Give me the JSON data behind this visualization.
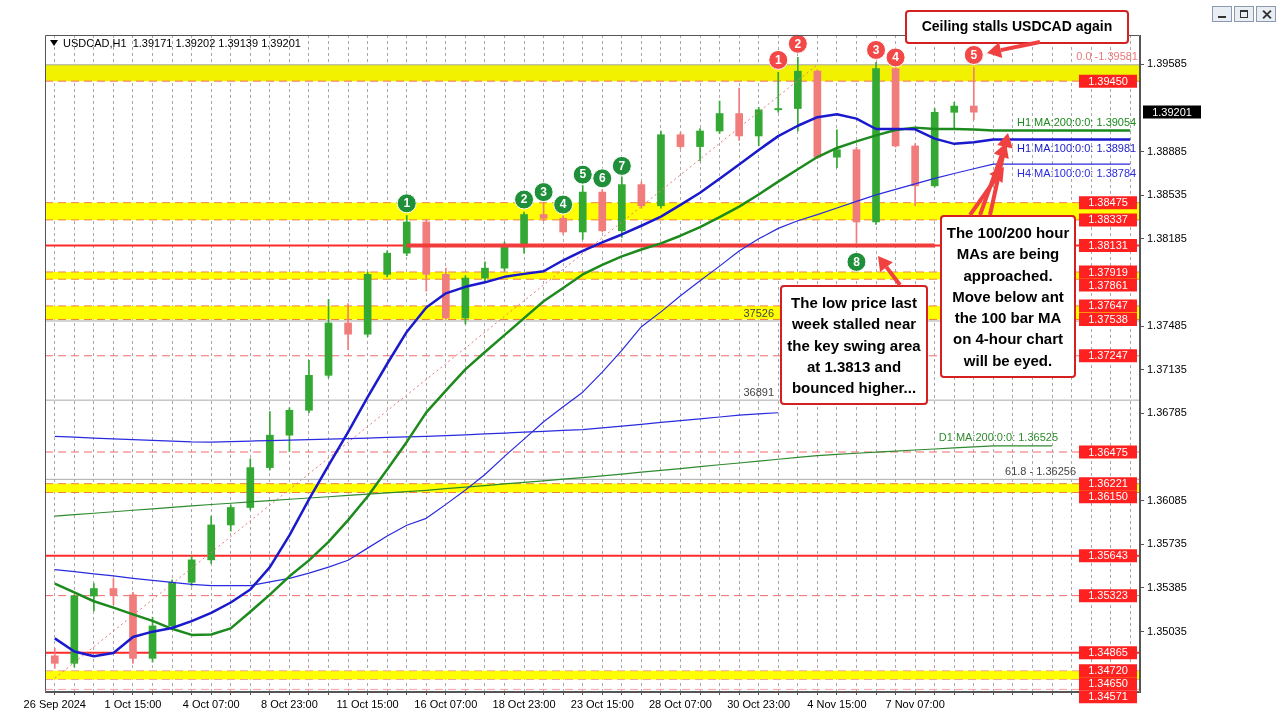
{
  "chart_data": {
    "type": "candlestick",
    "title": "USDCAD,H1  1.39171 1.39202 1.39139 1.39201",
    "categories": [
      "26 Sep 2024",
      null,
      null,
      null,
      "1 Oct 15:00",
      null,
      null,
      null,
      "4 Oct 07:00",
      null,
      null,
      null,
      "8 Oct 23:00",
      null,
      null,
      null,
      "11 Oct 15:00",
      null,
      null,
      null,
      "16 Oct 07:00",
      null,
      null,
      null,
      "18 Oct 23:00",
      null,
      null,
      null,
      "23 Oct 15:00",
      null,
      null,
      null,
      "28 Oct 07:00",
      null,
      null,
      null,
      "30 Oct 23:00",
      null,
      null,
      null,
      "4 Nov 15:00",
      null,
      null,
      null,
      "7 Nov 07:00",
      null,
      null,
      null,
      null,
      null,
      null,
      null,
      null,
      null,
      null,
      null
    ],
    "ohlc": [
      [
        1.3484,
        1.349,
        1.3474,
        1.3478
      ],
      [
        1.3478,
        1.3533,
        1.3475,
        1.3532
      ],
      [
        1.3532,
        1.3542,
        1.352,
        1.3538
      ],
      [
        1.3538,
        1.3546,
        1.3525,
        1.3533
      ],
      [
        1.3533,
        1.3535,
        1.3478,
        1.3482
      ],
      [
        1.3482,
        1.3515,
        1.3479,
        1.3508
      ],
      [
        1.3508,
        1.3545,
        1.3505,
        1.3543
      ],
      [
        1.3543,
        1.3564,
        1.354,
        1.3561
      ],
      [
        1.3561,
        1.3596,
        1.3558,
        1.3589
      ],
      [
        1.3589,
        1.3605,
        1.3584,
        1.3603
      ],
      [
        1.3603,
        1.3642,
        1.3601,
        1.3635
      ],
      [
        1.3635,
        1.368,
        1.3633,
        1.3661
      ],
      [
        1.3661,
        1.3683,
        1.3648,
        1.3681
      ],
      [
        1.3681,
        1.3721,
        1.3679,
        1.3709
      ],
      [
        1.3709,
        1.377,
        1.3707,
        1.3751
      ],
      [
        1.3751,
        1.37665,
        1.37295,
        1.3742
      ],
      [
        1.3742,
        1.3792,
        1.374,
        1.379
      ],
      [
        1.379,
        1.3809,
        1.3788,
        1.3807
      ],
      [
        1.3807,
        1.38372,
        1.3805,
        1.3832
      ],
      [
        1.3832,
        1.3834,
        1.37765,
        1.379
      ],
      [
        1.379,
        1.3795,
        1.3754,
        1.3755
      ],
      [
        1.3755,
        1.3789,
        1.37502,
        1.3787
      ],
      [
        1.3787,
        1.38,
        1.3784,
        1.3795
      ],
      [
        1.3795,
        1.3816,
        1.3793,
        1.3812
      ],
      [
        1.3812,
        1.384,
        1.3807,
        1.3838
      ],
      [
        1.3838,
        1.38476,
        1.3833,
        1.3835
      ],
      [
        1.3835,
        1.3837,
        1.3822,
        1.3824
      ],
      [
        1.3824,
        1.38611,
        1.3818,
        1.3856
      ],
      [
        1.3856,
        1.3858,
        1.3824,
        1.3825
      ],
      [
        1.3825,
        1.38683,
        1.38196,
        1.3862
      ],
      [
        1.3862,
        1.3864,
        1.3843,
        1.3845
      ],
      [
        1.3845,
        1.3905,
        1.3843,
        1.3902
      ],
      [
        1.3902,
        1.3904,
        1.3891,
        1.38925
      ],
      [
        1.38925,
        1.3907,
        1.3881,
        1.3905
      ],
      [
        1.3905,
        1.3929,
        1.3903,
        1.3919
      ],
      [
        1.3919,
        1.39395,
        1.38975,
        1.3901
      ],
      [
        1.3901,
        1.3924,
        1.38931,
        1.3922
      ],
      [
        1.3922,
        1.39521,
        1.392,
        1.3923
      ],
      [
        1.3923,
        1.39641,
        1.3905,
        1.3953
      ],
      [
        1.3953,
        1.3954,
        1.3883,
        1.3884
      ],
      [
        1.3884,
        1.3906,
        1.38755,
        1.389
      ],
      [
        1.389,
        1.3892,
        1.3815,
        1.3832
      ],
      [
        1.3832,
        1.39601,
        1.383,
        1.3955
      ],
      [
        1.3955,
        1.3956,
        1.3892,
        1.3893
      ],
      [
        1.3893,
        1.3895,
        1.38452,
        1.3861
      ],
      [
        1.3861,
        1.3923,
        1.386,
        1.392
      ],
      [
        1.392,
        1.3928,
        1.39075,
        1.3925
      ],
      [
        1.3925,
        1.3956,
        1.39139,
        1.39201
      ],
      null,
      null,
      null,
      null,
      null,
      null,
      null,
      null
    ],
    "colors": [
      "#f07c7c",
      "#33a833",
      "#33a833",
      "#f07c7c",
      "#f07c7c",
      "#33a833",
      "#33a833",
      "#33a833",
      "#33a833",
      "#33a833",
      "#33a833",
      "#33a833",
      "#33a833",
      "#33a833",
      "#33a833",
      "#f07c7c",
      "#33a833",
      "#33a833",
      "#33a833",
      "#f07c7c",
      "#f07c7c",
      "#33a833",
      "#33a833",
      "#33a833",
      "#33a833",
      "#f07c7c",
      "#f07c7c",
      "#33a833",
      "#f07c7c",
      "#33a833",
      "#f07c7c",
      "#33a833",
      "#f07c7c",
      "#33a833",
      "#33a833",
      "#f07c7c",
      "#33a833",
      "#33a833",
      "#33a833",
      "#f07c7c",
      "#33a833",
      "#f07c7c",
      "#33a833",
      "#f07c7c",
      "#f07c7c",
      "#33a833",
      "#33a833",
      "#f07c7c",
      null,
      null,
      null,
      null,
      null,
      null,
      null,
      null
    ],
    "series": [
      {
        "type": "line",
        "color": "#1a1acc",
        "values": [
          1.3498,
          1.34875,
          1.34837,
          1.34863,
          1.34991,
          1.35034,
          1.35063,
          1.35118,
          1.35185,
          1.35268,
          1.35372,
          1.35552,
          1.35807,
          1.36095,
          1.36368,
          1.36635,
          1.36915,
          1.37183,
          1.37438,
          1.37634,
          1.37748,
          1.378,
          1.37836,
          1.3788,
          1.37904,
          1.37925,
          1.38013,
          1.38088,
          1.38157,
          1.3822,
          1.3829,
          1.38363,
          1.38457,
          1.38555,
          1.38667,
          1.38782,
          1.38898,
          1.39009,
          1.39092,
          1.39161,
          1.39184,
          1.39149,
          1.39066,
          1.39067,
          1.39063,
          1.38989,
          1.38947,
          1.38959,
          1.38981,
          1.38981,
          1.38981,
          1.38981,
          1.38981,
          1.38981,
          1.38981,
          1.38981
        ]
      },
      {
        "type": "line",
        "color": "#1d8a1d",
        "values": [
          1.3542,
          1.35349,
          1.35278,
          1.35227,
          1.35173,
          1.3512,
          1.35057,
          1.35008,
          1.35011,
          1.3506,
          1.35194,
          1.35331,
          1.35478,
          1.35606,
          1.35754,
          1.35929,
          1.36118,
          1.36334,
          1.36556,
          1.36793,
          1.36967,
          1.37138,
          1.37277,
          1.37413,
          1.37549,
          1.37684,
          1.3779,
          1.37899,
          1.37976,
          1.38044,
          1.38099,
          1.38149,
          1.3821,
          1.38279,
          1.38359,
          1.38443,
          1.38541,
          1.38644,
          1.38743,
          1.38841,
          1.38914,
          1.38967,
          1.39015,
          1.39058,
          1.39077,
          1.39066,
          1.39066,
          1.39062,
          1.39054,
          1.39054,
          1.39054,
          1.39054,
          1.39054,
          1.39054,
          1.39054,
          1.39054
        ]
      },
      {
        "type": "line",
        "color": "#2a2ae0",
        "values": [
          1.35532,
          1.35515,
          1.35498,
          1.35481,
          1.35462,
          1.35445,
          1.3543,
          1.35414,
          1.35403,
          1.35403,
          1.35403,
          1.35433,
          1.35462,
          1.35503,
          1.35552,
          1.35607,
          1.35704,
          1.35801,
          1.35888,
          1.35943,
          1.36055,
          1.36171,
          1.36295,
          1.3644,
          1.36578,
          1.36718,
          1.36838,
          1.36955,
          1.37116,
          1.37291,
          1.3748,
          1.37599,
          1.37728,
          1.37848,
          1.37966,
          1.38088,
          1.38185,
          1.38269,
          1.3833,
          1.38379,
          1.38432,
          1.38485,
          1.38538,
          1.38582,
          1.38626,
          1.3867,
          1.38709,
          1.38747,
          1.38784,
          1.38784,
          1.38784,
          1.38784,
          1.38784,
          1.38784,
          1.38784,
          1.38784
        ]
      },
      {
        "type": "line",
        "color": "#2a2ae0",
        "values": [
          1.366,
          1.36594,
          1.36587,
          1.36581,
          1.36575,
          1.36569,
          1.36563,
          1.36557,
          1.36555,
          1.36558,
          1.36563,
          1.36567,
          1.36571,
          1.36575,
          1.36579,
          1.36583,
          1.36587,
          1.36592,
          1.36596,
          1.366,
          1.36607,
          1.36613,
          1.3662,
          1.36627,
          1.36634,
          1.36641,
          1.36648,
          1.36655,
          1.36668,
          1.36683,
          1.36697,
          1.36712,
          1.36727,
          1.36741,
          1.36756,
          1.36771,
          1.36781,
          1.3679,
          null,
          null,
          null,
          null,
          null,
          null,
          null,
          null,
          null,
          null,
          null,
          null,
          null,
          null,
          null,
          null,
          null,
          null
        ]
      },
      {
        "type": "line",
        "color": "#2e8b2e",
        "values": [
          1.35961,
          1.35973,
          1.35984,
          1.35996,
          1.36008,
          1.36019,
          1.36031,
          1.36043,
          1.36054,
          1.36064,
          1.36075,
          1.36085,
          1.36096,
          1.36106,
          1.36116,
          1.36127,
          1.36137,
          1.36148,
          1.36158,
          1.36168,
          1.36181,
          1.36194,
          1.36206,
          1.36219,
          1.36232,
          1.36244,
          1.36257,
          1.3627,
          1.36283,
          1.36298,
          1.36313,
          1.36327,
          1.36342,
          1.36358,
          1.36373,
          1.36387,
          1.36402,
          1.36417,
          1.36432,
          1.36446,
          1.36456,
          1.36465,
          1.36474,
          1.36482,
          1.36491,
          1.36499,
          1.36508,
          1.36517,
          1.36525,
          1.36525,
          1.36525,
          1.36525,
          null,
          null,
          null,
          null
        ]
      },
      {
        "type": "line",
        "color": "#e87878",
        "line_style": "dotted",
        "values": [
          1.34661,
          1.34787,
          1.34913,
          1.35039,
          1.35166,
          1.35292,
          1.35418,
          1.35544,
          1.3567,
          1.35796,
          1.35923,
          1.36049,
          1.36175,
          1.36301,
          1.36427,
          1.36553,
          1.3668,
          1.36806,
          1.36932,
          1.37058,
          1.37184,
          1.3731,
          1.37437,
          1.37563,
          1.37689,
          1.37815,
          1.37941,
          1.38067,
          1.38194,
          1.3832,
          1.38446,
          1.38572,
          1.38698,
          1.38824,
          1.38951,
          1.39077,
          1.39203,
          1.39329,
          1.39455,
          1.39581,
          null,
          null,
          null,
          null,
          null,
          null,
          null,
          null,
          null,
          null,
          null,
          null,
          null,
          null,
          null,
          null
        ]
      },
      {
        "type": "line",
        "color": "#f23c3c",
        "values": [
          null,
          null,
          null,
          null,
          null,
          null,
          null,
          null,
          null,
          null,
          null,
          null,
          null,
          null,
          null,
          null,
          null,
          null,
          1.38131,
          1.38131,
          1.38131,
          1.38131,
          1.38131,
          1.38131,
          1.38131,
          1.38131,
          1.38131,
          1.38131,
          1.38131,
          1.38131,
          1.38131,
          1.38131,
          1.38131,
          1.38131,
          1.38131,
          1.38131,
          1.38131,
          1.38131,
          1.38131,
          1.38131,
          1.38131,
          1.38131,
          1.38131,
          1.38131,
          1.38131,
          1.38131,
          null,
          null,
          null,
          null,
          null,
          null,
          null,
          null,
          null,
          null
        ]
      },
      {
        "type": "scatter",
        "color": "#1f8f3a",
        "marker": "circle",
        "values": [
          null,
          null,
          null,
          null,
          null,
          null,
          null,
          null,
          null,
          null,
          null,
          null,
          null,
          null,
          null,
          null,
          null,
          null,
          1.3847,
          null,
          null,
          null,
          null,
          null,
          1.385,
          1.3856,
          1.3846,
          1.387,
          1.3867,
          1.3877,
          null,
          null,
          null,
          null,
          null,
          null,
          null,
          null,
          null,
          null,
          null,
          1.38,
          null,
          null,
          null,
          null,
          null,
          null,
          null,
          null,
          null,
          null,
          null,
          null,
          null,
          null
        ]
      },
      {
        "type": "scatter",
        "color": "#f24848",
        "marker": "circle",
        "values": [
          null,
          null,
          null,
          null,
          null,
          null,
          null,
          null,
          null,
          null,
          null,
          null,
          null,
          null,
          null,
          null,
          null,
          null,
          null,
          null,
          null,
          null,
          null,
          null,
          null,
          null,
          null,
          null,
          null,
          null,
          null,
          null,
          null,
          null,
          null,
          null,
          null,
          1.3962,
          1.3975,
          null,
          null,
          null,
          1.397,
          1.3964,
          null,
          null,
          null,
          1.3966,
          null,
          null,
          null,
          null,
          null,
          null,
          null,
          null
        ]
      }
    ],
    "ylim": [
      1.3455,
      1.3982
    ],
    "yticks": [
      1.39585,
      1.38885,
      1.38535,
      1.38185,
      1.37485,
      1.37135,
      1.36785,
      1.36085,
      1.35735,
      1.35385,
      1.35035
    ],
    "grid": "x",
    "ref_lines": [
      {
        "axis": "y",
        "value": 1.39581,
        "color": "#a8a8a8",
        "line_style": "solid"
      },
      {
        "axis": "y",
        "value": 1.37526,
        "color": "#a8a8a8",
        "line_style": "solid"
      },
      {
        "axis": "y",
        "value": 1.36891,
        "color": "#a8a8a8",
        "line_style": "solid"
      },
      {
        "axis": "y",
        "value": 1.36256,
        "color": "#a8a8a8",
        "line_style": "solid"
      },
      {
        "axis": "y",
        "value": 1.3945,
        "label": "1.39450",
        "color": "#f26b6b",
        "line_style": "dashed"
      },
      {
        "axis": "y",
        "value": 1.38475,
        "label": "1.38475",
        "color": "#f08040",
        "line_style": "dashed"
      },
      {
        "axis": "y",
        "value": 1.38337,
        "label": "1.38337",
        "color": "#f08040",
        "line_style": "dashed"
      },
      {
        "axis": "y",
        "value": 1.38131,
        "label": "1.38131",
        "color": "#ff2a2a",
        "line_style": "solid"
      },
      {
        "axis": "y",
        "value": 1.37919,
        "label": "1.37919",
        "color": "#f08040",
        "line_style": "dashed"
      },
      {
        "axis": "y",
        "value": 1.37861,
        "label": "1.37861",
        "color": "#f08040",
        "line_style": "dashed"
      },
      {
        "axis": "y",
        "value": 1.37647,
        "label": "1.37647",
        "color": "#f08040",
        "line_style": "dashed"
      },
      {
        "axis": "y",
        "value": 1.37538,
        "label": "1.37538",
        "color": "#f08040",
        "line_style": "dashed"
      },
      {
        "axis": "y",
        "value": 1.37247,
        "label": "1.37247",
        "color": "#f26b6b",
        "line_style": "dashed"
      },
      {
        "axis": "y",
        "value": 1.36475,
        "label": "1.36475",
        "color": "#f26b6b",
        "line_style": "dashed"
      },
      {
        "axis": "y",
        "value": 1.36221,
        "label": "1.36221",
        "color": "#f08040",
        "line_style": "dashed"
      },
      {
        "axis": "y",
        "value": 1.3615,
        "label": "1.36150",
        "color": "#f08040",
        "line_style": "dashed"
      },
      {
        "axis": "y",
        "value": 1.35643,
        "label": "1.35643",
        "color": "#ff2a2a",
        "line_style": "solid"
      },
      {
        "axis": "y",
        "value": 1.35323,
        "label": "1.35323",
        "color": "#f26b6b",
        "line_style": "dashed"
      },
      {
        "axis": "y",
        "value": 1.34865,
        "label": "1.34865",
        "color": "#ff2a2a",
        "line_style": "solid"
      },
      {
        "axis": "y",
        "value": 1.3472,
        "label": "1.34720",
        "color": "#f4a0a0",
        "line_style": "dashed"
      },
      {
        "axis": "y",
        "value": 1.3465,
        "label": "1.34650",
        "color": "#f4a0a0",
        "line_style": "dashed"
      },
      {
        "axis": "y",
        "value": 1.34571,
        "label": "1.34571",
        "color": "#f4a0a0",
        "line_style": "dashed"
      }
    ],
    "bands": [
      {
        "axis": "y",
        "from": 1.3945,
        "to": 1.39581,
        "color": "#f2f200"
      },
      {
        "axis": "y",
        "from": 1.38337,
        "to": 1.38475,
        "color": "#ffff00"
      },
      {
        "axis": "y",
        "from": 1.37861,
        "to": 1.37919,
        "color": "#ffff00"
      },
      {
        "axis": "y",
        "from": 1.37538,
        "to": 1.37647,
        "color": "#ffff00"
      },
      {
        "axis": "y",
        "from": 1.3615,
        "to": 1.36221,
        "color": "#ffff00"
      },
      {
        "axis": "y",
        "from": 1.3465,
        "to": 1.3472,
        "color": "#ffff00"
      }
    ],
    "annotations": [
      "Ceiling stalls USDCAD again",
      "The low price last week stalled near the key swing area at 1.3813 and bounced higher...",
      "The 100/200 hour MAs are being approached. Move below ant the 100 bar MA on 4-hour chart will be eyed.",
      "1.39201",
      {
        "text": "H1 MA:200:0:0: 1.39054",
        "y": 1.39054
      },
      {
        "text": "H1 MA:100:0:0: 1.38981",
        "y": 1.38981
      },
      {
        "text": "H4 MA:100:0:0: 1.38784",
        "y": 1.38784
      },
      {
        "text": "D1 MA:200:0:0: 1.36525",
        "y": 1.36525
      },
      {
        "text": "0.0 -1.39581",
        "y": 1.39581
      },
      {
        "text": "61.8 - 1.36256",
        "y": 1.36256
      },
      {
        "text": "37526",
        "y": 1.37526
      },
      {
        "text": "36891",
        "y": 1.36891
      },
      {
        "text": "1",
        "y": 1.3847
      },
      {
        "text": "2",
        "y": 1.385
      },
      {
        "text": "3",
        "y": 1.3856
      },
      {
        "text": "4",
        "y": 1.3846
      },
      {
        "text": "5",
        "y": 1.387
      },
      {
        "text": "6",
        "y": 1.3867
      },
      {
        "text": "7",
        "y": 1.3877
      },
      {
        "text": "8",
        "y": 1.38
      },
      {
        "text": "1",
        "y": 1.3962
      },
      {
        "text": "2",
        "y": 1.3975
      },
      {
        "text": "3",
        "y": 1.397
      },
      {
        "text": "4",
        "y": 1.3964
      },
      {
        "text": "5",
        "y": 1.3966
      }
    ]
  }
}
